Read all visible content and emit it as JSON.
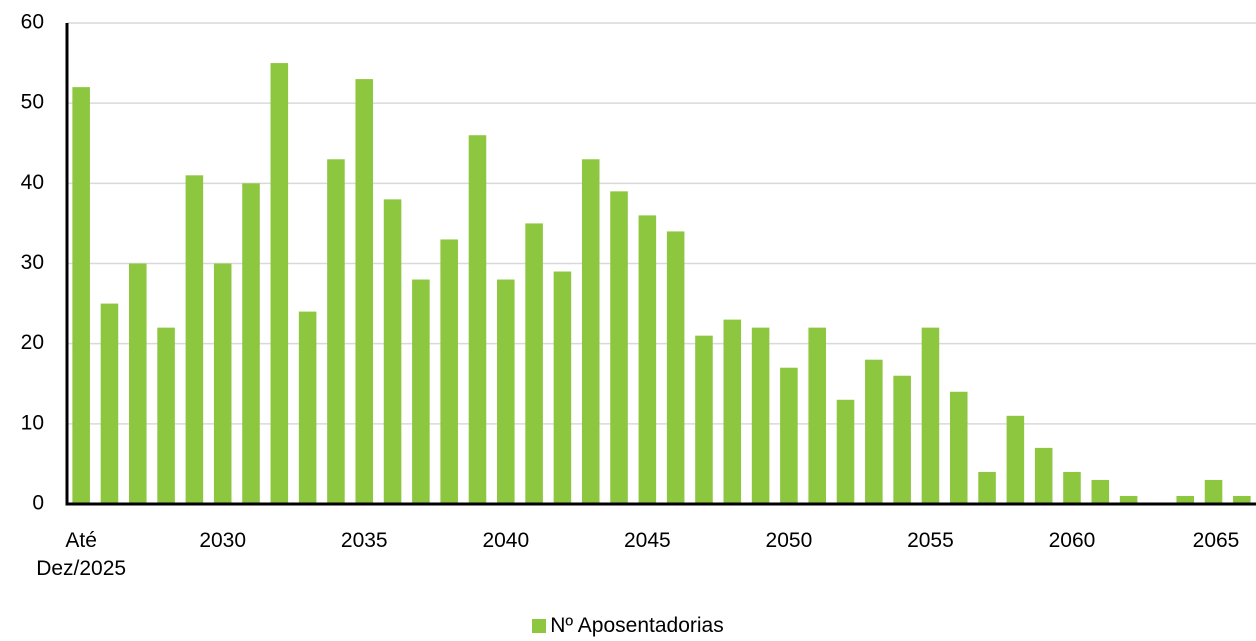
{
  "chart_data": {
    "type": "bar",
    "categories": [
      "Até Dez/2025",
      null,
      null,
      null,
      null,
      "2030",
      null,
      null,
      null,
      null,
      "2035",
      null,
      null,
      null,
      null,
      "2040",
      null,
      null,
      null,
      null,
      "2045",
      null,
      null,
      null,
      null,
      "2050",
      null,
      null,
      null,
      null,
      "2055",
      null,
      null,
      null,
      null,
      "2060",
      null,
      null,
      null,
      null,
      "2065",
      null
    ],
    "series": [
      {
        "name": "Nº Aposentadorias",
        "color": "#8dc63f",
        "values": [
          52,
          25,
          30,
          22,
          41,
          30,
          40,
          55,
          24,
          43,
          53,
          38,
          28,
          33,
          46,
          28,
          35,
          29,
          43,
          39,
          36,
          34,
          21,
          23,
          22,
          17,
          22,
          13,
          18,
          16,
          22,
          14,
          4,
          11,
          7,
          4,
          3,
          1,
          0,
          1,
          3,
          1
        ]
      }
    ],
    "ylim": [
      0,
      60
    ],
    "yticks": [
      0,
      10,
      20,
      30,
      40,
      50,
      60
    ],
    "grid": true,
    "legend": "bottom"
  }
}
